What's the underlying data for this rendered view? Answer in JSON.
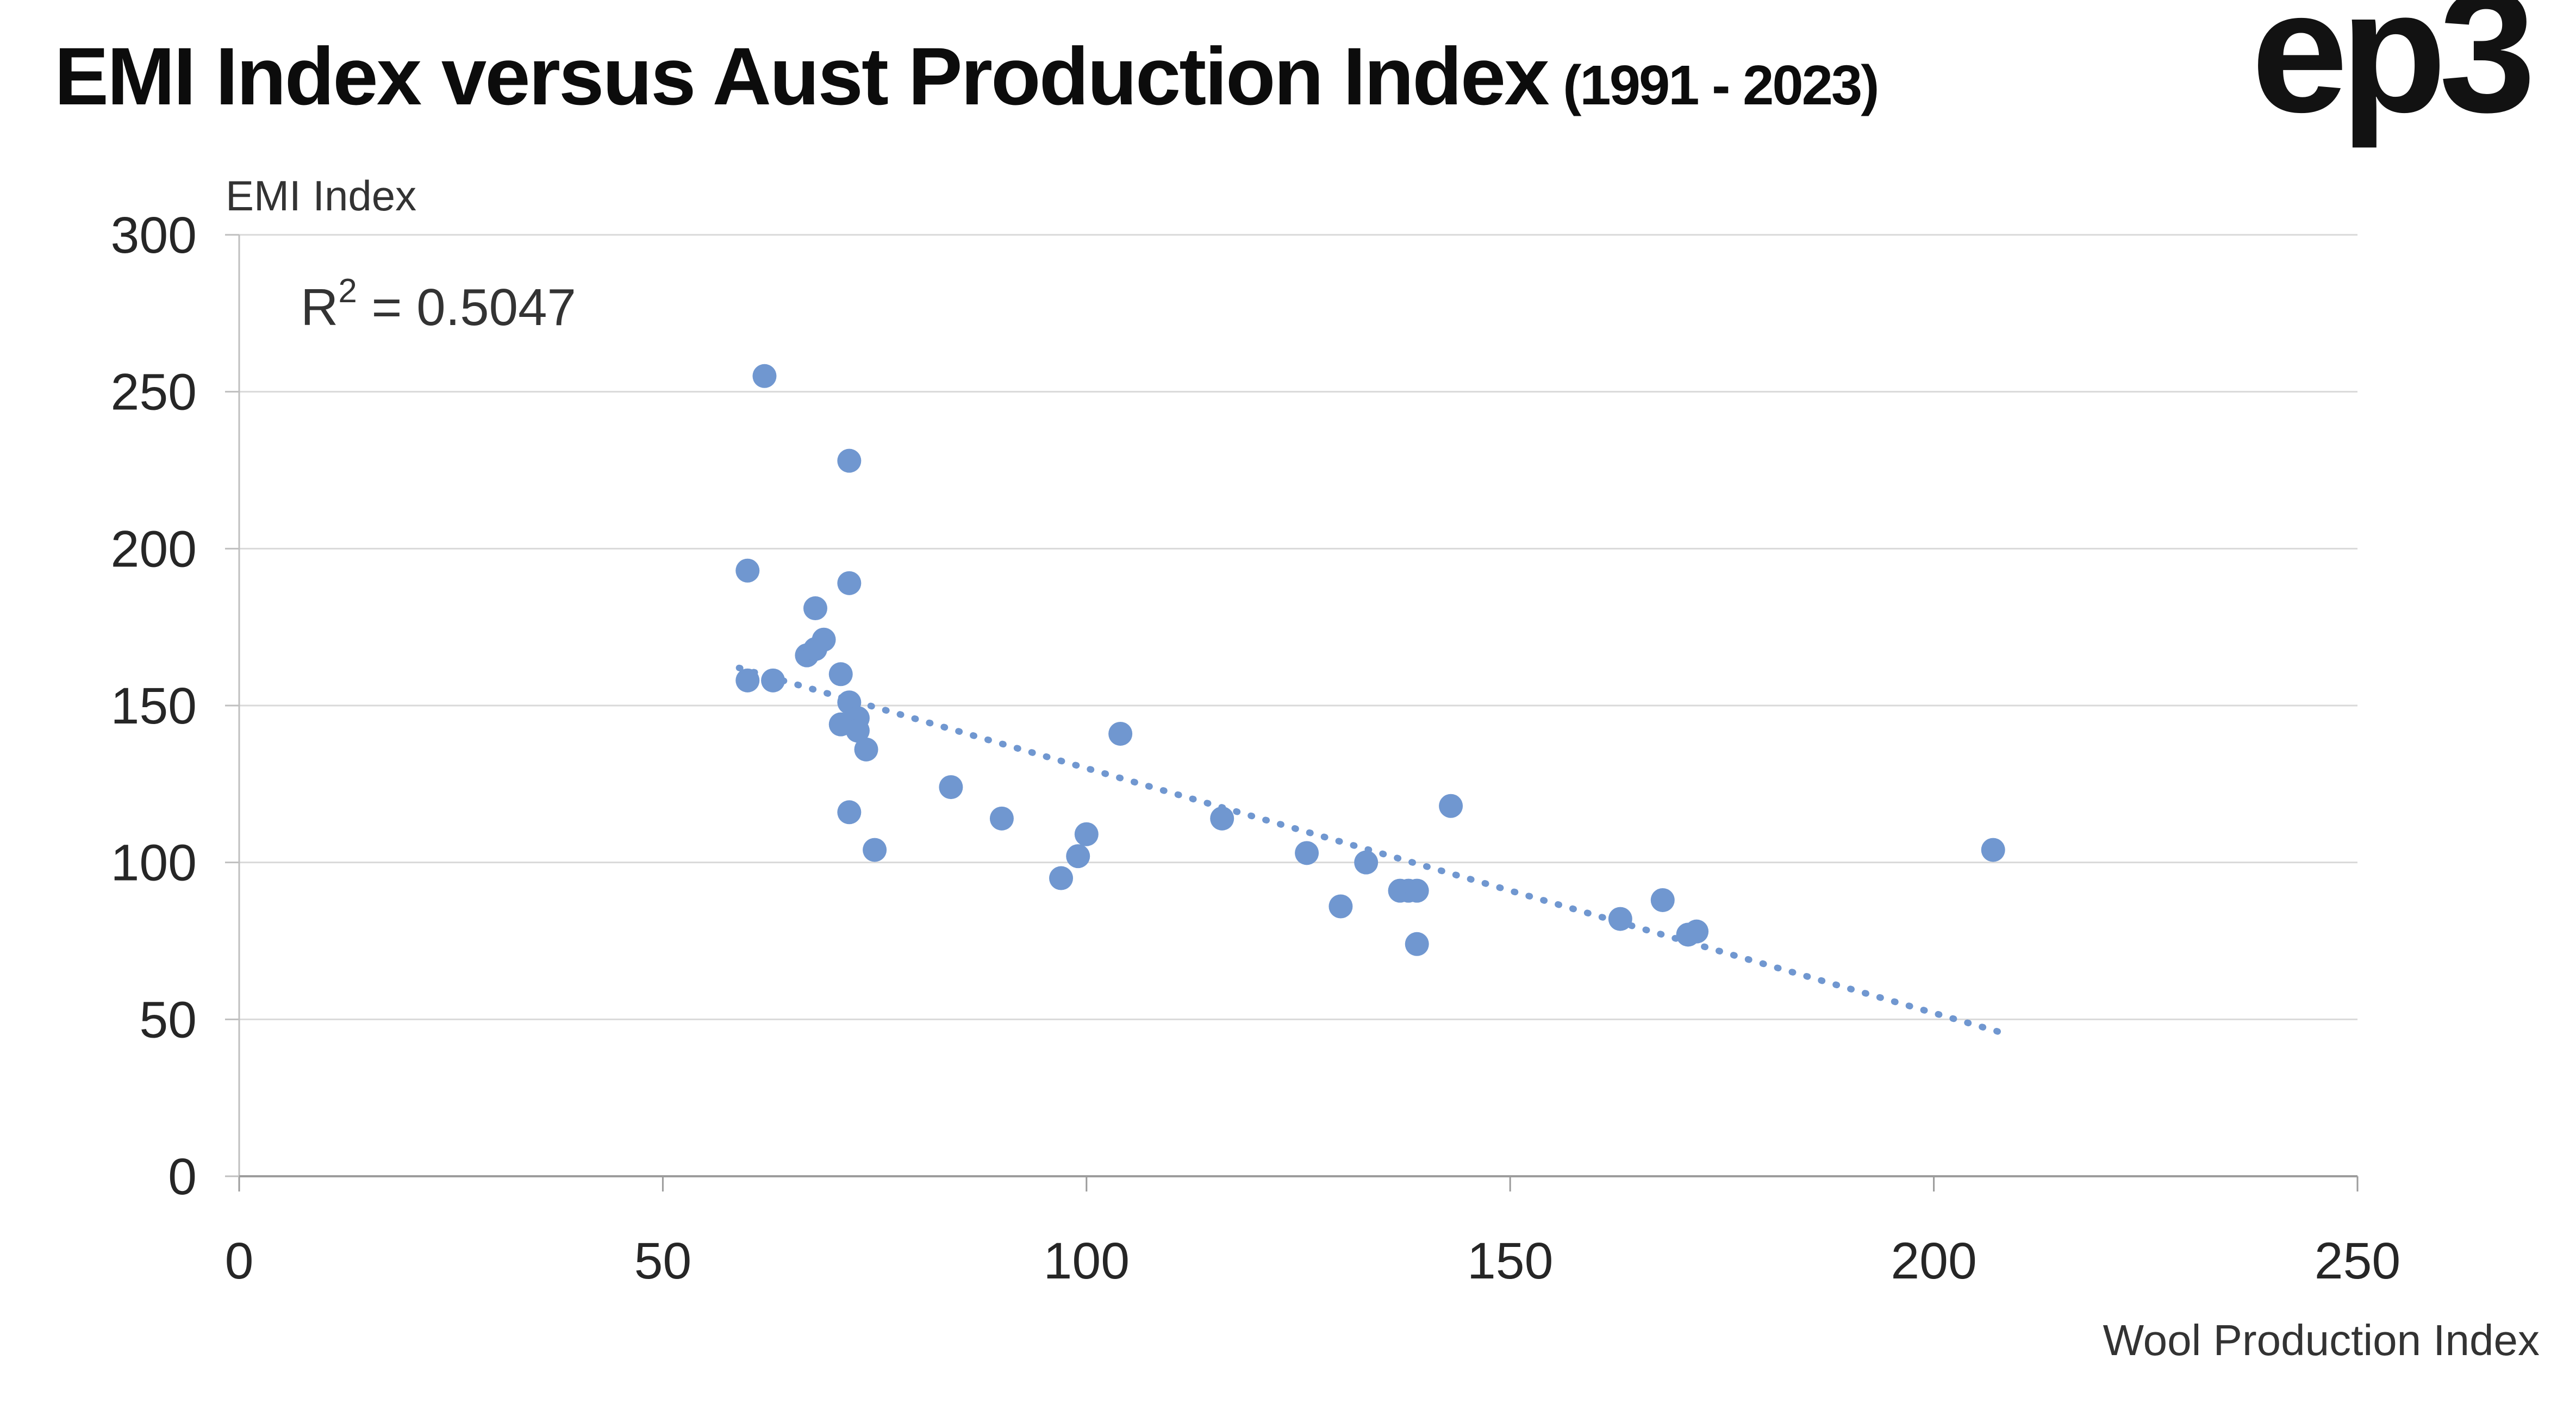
{
  "header": {
    "title": "EMI Index versus Aust Production Index",
    "subtitle": "(1991 - 2023)",
    "logo": "ep3"
  },
  "chart_data": {
    "type": "scatter",
    "title": "EMI Index versus Aust Production Index (1991 - 2023)",
    "xlabel": "Wool Production Index",
    "ylabel": "EMI Index",
    "xlim": [
      0,
      250
    ],
    "ylim": [
      0,
      300
    ],
    "xticks": [
      0,
      50,
      100,
      150,
      200,
      250
    ],
    "yticks": [
      0,
      50,
      100,
      150,
      200,
      250,
      300
    ],
    "grid": "horizontal",
    "legend": "none",
    "annotation": {
      "r_label": "R",
      "exponent": "2",
      "value_text": " = 0.5047",
      "r_squared": 0.5047
    },
    "points": [
      [
        60,
        193
      ],
      [
        62,
        255
      ],
      [
        60,
        158
      ],
      [
        63,
        158
      ],
      [
        67,
        166
      ],
      [
        68,
        168
      ],
      [
        68,
        181
      ],
      [
        69,
        171
      ],
      [
        72,
        228
      ],
      [
        72,
        189
      ],
      [
        71,
        160
      ],
      [
        72,
        151
      ],
      [
        71,
        144
      ],
      [
        73,
        146
      ],
      [
        73,
        142
      ],
      [
        74,
        136
      ],
      [
        72,
        116
      ],
      [
        75,
        104
      ],
      [
        84,
        124
      ],
      [
        90,
        114
      ],
      [
        97,
        95
      ],
      [
        100,
        109
      ],
      [
        99,
        102
      ],
      [
        104,
        141
      ],
      [
        116,
        114
      ],
      [
        126,
        103
      ],
      [
        130,
        86
      ],
      [
        133,
        100
      ],
      [
        137,
        91
      ],
      [
        138,
        91
      ],
      [
        139,
        91
      ],
      [
        139,
        74
      ],
      [
        143,
        118
      ],
      [
        163,
        82
      ],
      [
        168,
        88
      ],
      [
        171,
        77
      ],
      [
        172,
        78
      ],
      [
        207,
        104
      ]
    ],
    "trendline": {
      "style": "dotted",
      "x1": 59,
      "y1": 162,
      "x2": 209,
      "y2": 45
    },
    "colors": {
      "point": "#7097d0",
      "trend": "#7097d0",
      "grid": "#d9d9d9",
      "axis_x": "#9c9c9c",
      "axis_y": "#bfbfbf",
      "tick_text": "#262626",
      "axis_label": "#333333",
      "annotation_text": "#333333",
      "title": "#0c0c0c"
    }
  }
}
